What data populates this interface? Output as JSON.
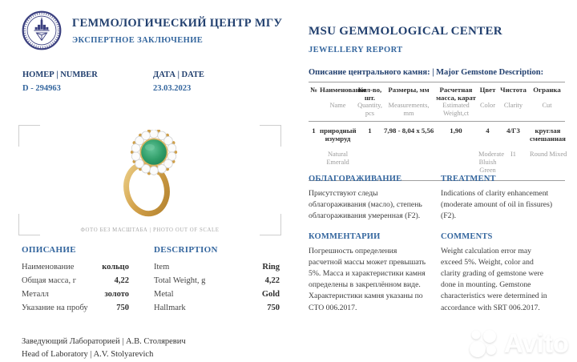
{
  "org": {
    "name_ru": "ГЕММОЛОГИЧЕСКИЙ ЦЕНТР МГУ",
    "subtitle_ru": "ЭКСПЕРТНОЕ ЗАКЛЮЧЕНИЕ",
    "name_en": "MSU GEMMOLOGICAL CENTER",
    "subtitle_en": "JEWELLERY REPORT"
  },
  "report": {
    "number_label": "НОМЕР | NUMBER",
    "number": "D - 294963",
    "date_label": "ДАТА | DATE",
    "date": "23.03.2023"
  },
  "photo": {
    "caption": "ФОТО БЕЗ МАСШТАБА | PHOTO OUT OF SCALE",
    "subject": "gold ring with round emerald in diamond halo"
  },
  "gem_table": {
    "title": "Описание центрального камня: | Major Gemstone Description:",
    "headers_ru": [
      "№",
      "Наименование",
      "Кол-во, шт.",
      "Размеры, мм",
      "Расчетная масса, карат",
      "Цвет",
      "Чистота",
      "Огранка"
    ],
    "headers_en": [
      "",
      "Name",
      "Quantity, pcs",
      "Measurements, mm",
      "Estimated Weight,ct",
      "Color",
      "Clarity",
      "Cut"
    ],
    "row_ru": [
      "1",
      "природный изумруд",
      "1",
      "7,98 - 8,04 x 5,56",
      "1,90",
      "4",
      "4/Г3",
      "круглая смешанная"
    ],
    "row_en": [
      "",
      "Natural Emerald",
      "",
      "",
      "",
      "Moderate Bluish Green",
      "I1",
      "Round Mixed"
    ]
  },
  "treatment": {
    "title_ru": "ОБЛАГОРАЖИВАНИЕ",
    "title_en": "TREATMENT",
    "text_ru": "Присутствуют следы облагораживания (масло), степень облагораживания умеренная (F2).",
    "text_en": "Indications of clarity enhancement (moderate amount of oil in fissures) (F2)."
  },
  "comments": {
    "title_ru": "КОММЕНТАРИИ",
    "title_en": "COMMENTS",
    "text_ru": "Погрешность определения расчетной массы может превышать 5%. Масса и характеристики камня определены в закреплённом виде. Характеристики камня указаны по СТО 006.2017.",
    "text_en": "Weight calculation error may exceed 5%. Weight, color and clarity grading of gemstone were done in mounting. Gemstone characteristics were determined in accordance with SRT 006.2017."
  },
  "description": {
    "title_ru": "ОПИСАНИЕ",
    "title_en": "DESCRIPTION",
    "rows_ru": [
      {
        "label": "Наименование",
        "value": "кольцо"
      },
      {
        "label": "Общая масса, г",
        "value": "4,22"
      },
      {
        "label": "Металл",
        "value": "золото"
      },
      {
        "label": "Указание на пробу",
        "value": "750"
      }
    ],
    "rows_en": [
      {
        "label": "Item",
        "value": "Ring"
      },
      {
        "label": "Total Weight, g",
        "value": "4,22"
      },
      {
        "label": "Metal",
        "value": "Gold"
      },
      {
        "label": "Hallmark",
        "value": "750"
      }
    ]
  },
  "signature": {
    "ru": "Заведующий Лабораторией  | А.В. Столяревич",
    "en": "Head of Laboratory  | A.V. Stolyarevich"
  },
  "watermark": {
    "label": "Avito"
  },
  "colors": {
    "navy": "#22406f",
    "blue": "#34669e",
    "emerald": "#2f9d68",
    "gold": "#d2a14a",
    "gray_text": "#9c9c9c"
  }
}
